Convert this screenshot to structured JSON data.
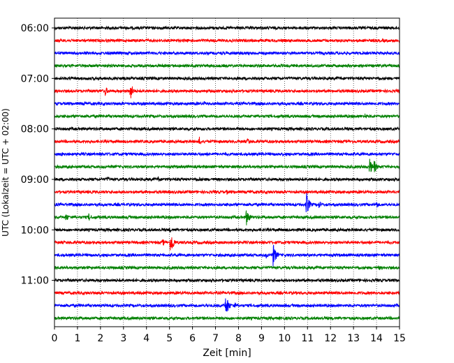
{
  "chart_data": {
    "type": "line",
    "title": "",
    "xlabel": "Zeit  [min]",
    "ylabel": "UTC (Lokalzeit = UTC + 02:00)",
    "xlim": [
      0,
      15
    ],
    "x_ticks": [
      "0",
      "1",
      "2",
      "3",
      "4",
      "5",
      "6",
      "7",
      "8",
      "9",
      "10",
      "11",
      "12",
      "13",
      "14",
      "15"
    ],
    "y_ticks": [
      "06:00",
      "07:00",
      "08:00",
      "09:00",
      "10:00",
      "11:00"
    ],
    "grid": "vertical dotted at each minute",
    "trace_interval_minutes": 15,
    "trace_count": 24,
    "trace_start": "06:00",
    "trace_colors": [
      "#000000",
      "#ff0000",
      "#0000ff",
      "#008000"
    ],
    "events": [
      {
        "trace": 5,
        "time_min": 2.2,
        "amp": 8
      },
      {
        "trace": 5,
        "time_min": 3.3,
        "amp": 14
      },
      {
        "trace": 5,
        "time_min": 15.0,
        "amp": 6
      },
      {
        "trace": 6,
        "time_min": 1.3,
        "amp": 4
      },
      {
        "trace": 6,
        "time_min": 6.5,
        "amp": 4
      },
      {
        "trace": 7,
        "time_min": 13.5,
        "amp": 5
      },
      {
        "trace": 9,
        "time_min": 6.3,
        "amp": 7
      },
      {
        "trace": 9,
        "time_min": 8.4,
        "amp": 6
      },
      {
        "trace": 10,
        "time_min": 0.3,
        "amp": 4
      },
      {
        "trace": 11,
        "time_min": 13.7,
        "amp": 13
      },
      {
        "trace": 11,
        "time_min": 13.9,
        "amp": 10
      },
      {
        "trace": 12,
        "time_min": 2.3,
        "amp": 5
      },
      {
        "trace": 12,
        "time_min": 4.5,
        "amp": 5
      },
      {
        "trace": 12,
        "time_min": 6.3,
        "amp": 4
      },
      {
        "trace": 13,
        "time_min": 7.5,
        "amp": 4
      },
      {
        "trace": 13,
        "time_min": 8.5,
        "amp": 4
      },
      {
        "trace": 14,
        "time_min": 10.95,
        "amp": 18
      },
      {
        "trace": 14,
        "time_min": 11.5,
        "amp": 6
      },
      {
        "trace": 14,
        "time_min": 14.0,
        "amp": 6
      },
      {
        "trace": 15,
        "time_min": 0.5,
        "amp": 7
      },
      {
        "trace": 15,
        "time_min": 1.5,
        "amp": 7
      },
      {
        "trace": 15,
        "time_min": 3.2,
        "amp": 4
      },
      {
        "trace": 15,
        "time_min": 8.35,
        "amp": 14
      },
      {
        "trace": 16,
        "time_min": 5.0,
        "amp": 4
      },
      {
        "trace": 17,
        "time_min": 5.05,
        "amp": 20
      },
      {
        "trace": 17,
        "time_min": 4.7,
        "amp": 6
      },
      {
        "trace": 17,
        "time_min": 1.0,
        "amp": 3
      },
      {
        "trace": 18,
        "time_min": 9.5,
        "amp": 18
      },
      {
        "trace": 18,
        "time_min": 9.2,
        "amp": 5
      },
      {
        "trace": 19,
        "time_min": 14.1,
        "amp": 4
      },
      {
        "trace": 22,
        "time_min": 7.45,
        "amp": 18
      },
      {
        "trace": 22,
        "time_min": 7.8,
        "amp": 7
      },
      {
        "trace": 22,
        "time_min": 6.6,
        "amp": 4
      },
      {
        "trace": 22,
        "time_min": 15.0,
        "amp": 5
      }
    ]
  }
}
